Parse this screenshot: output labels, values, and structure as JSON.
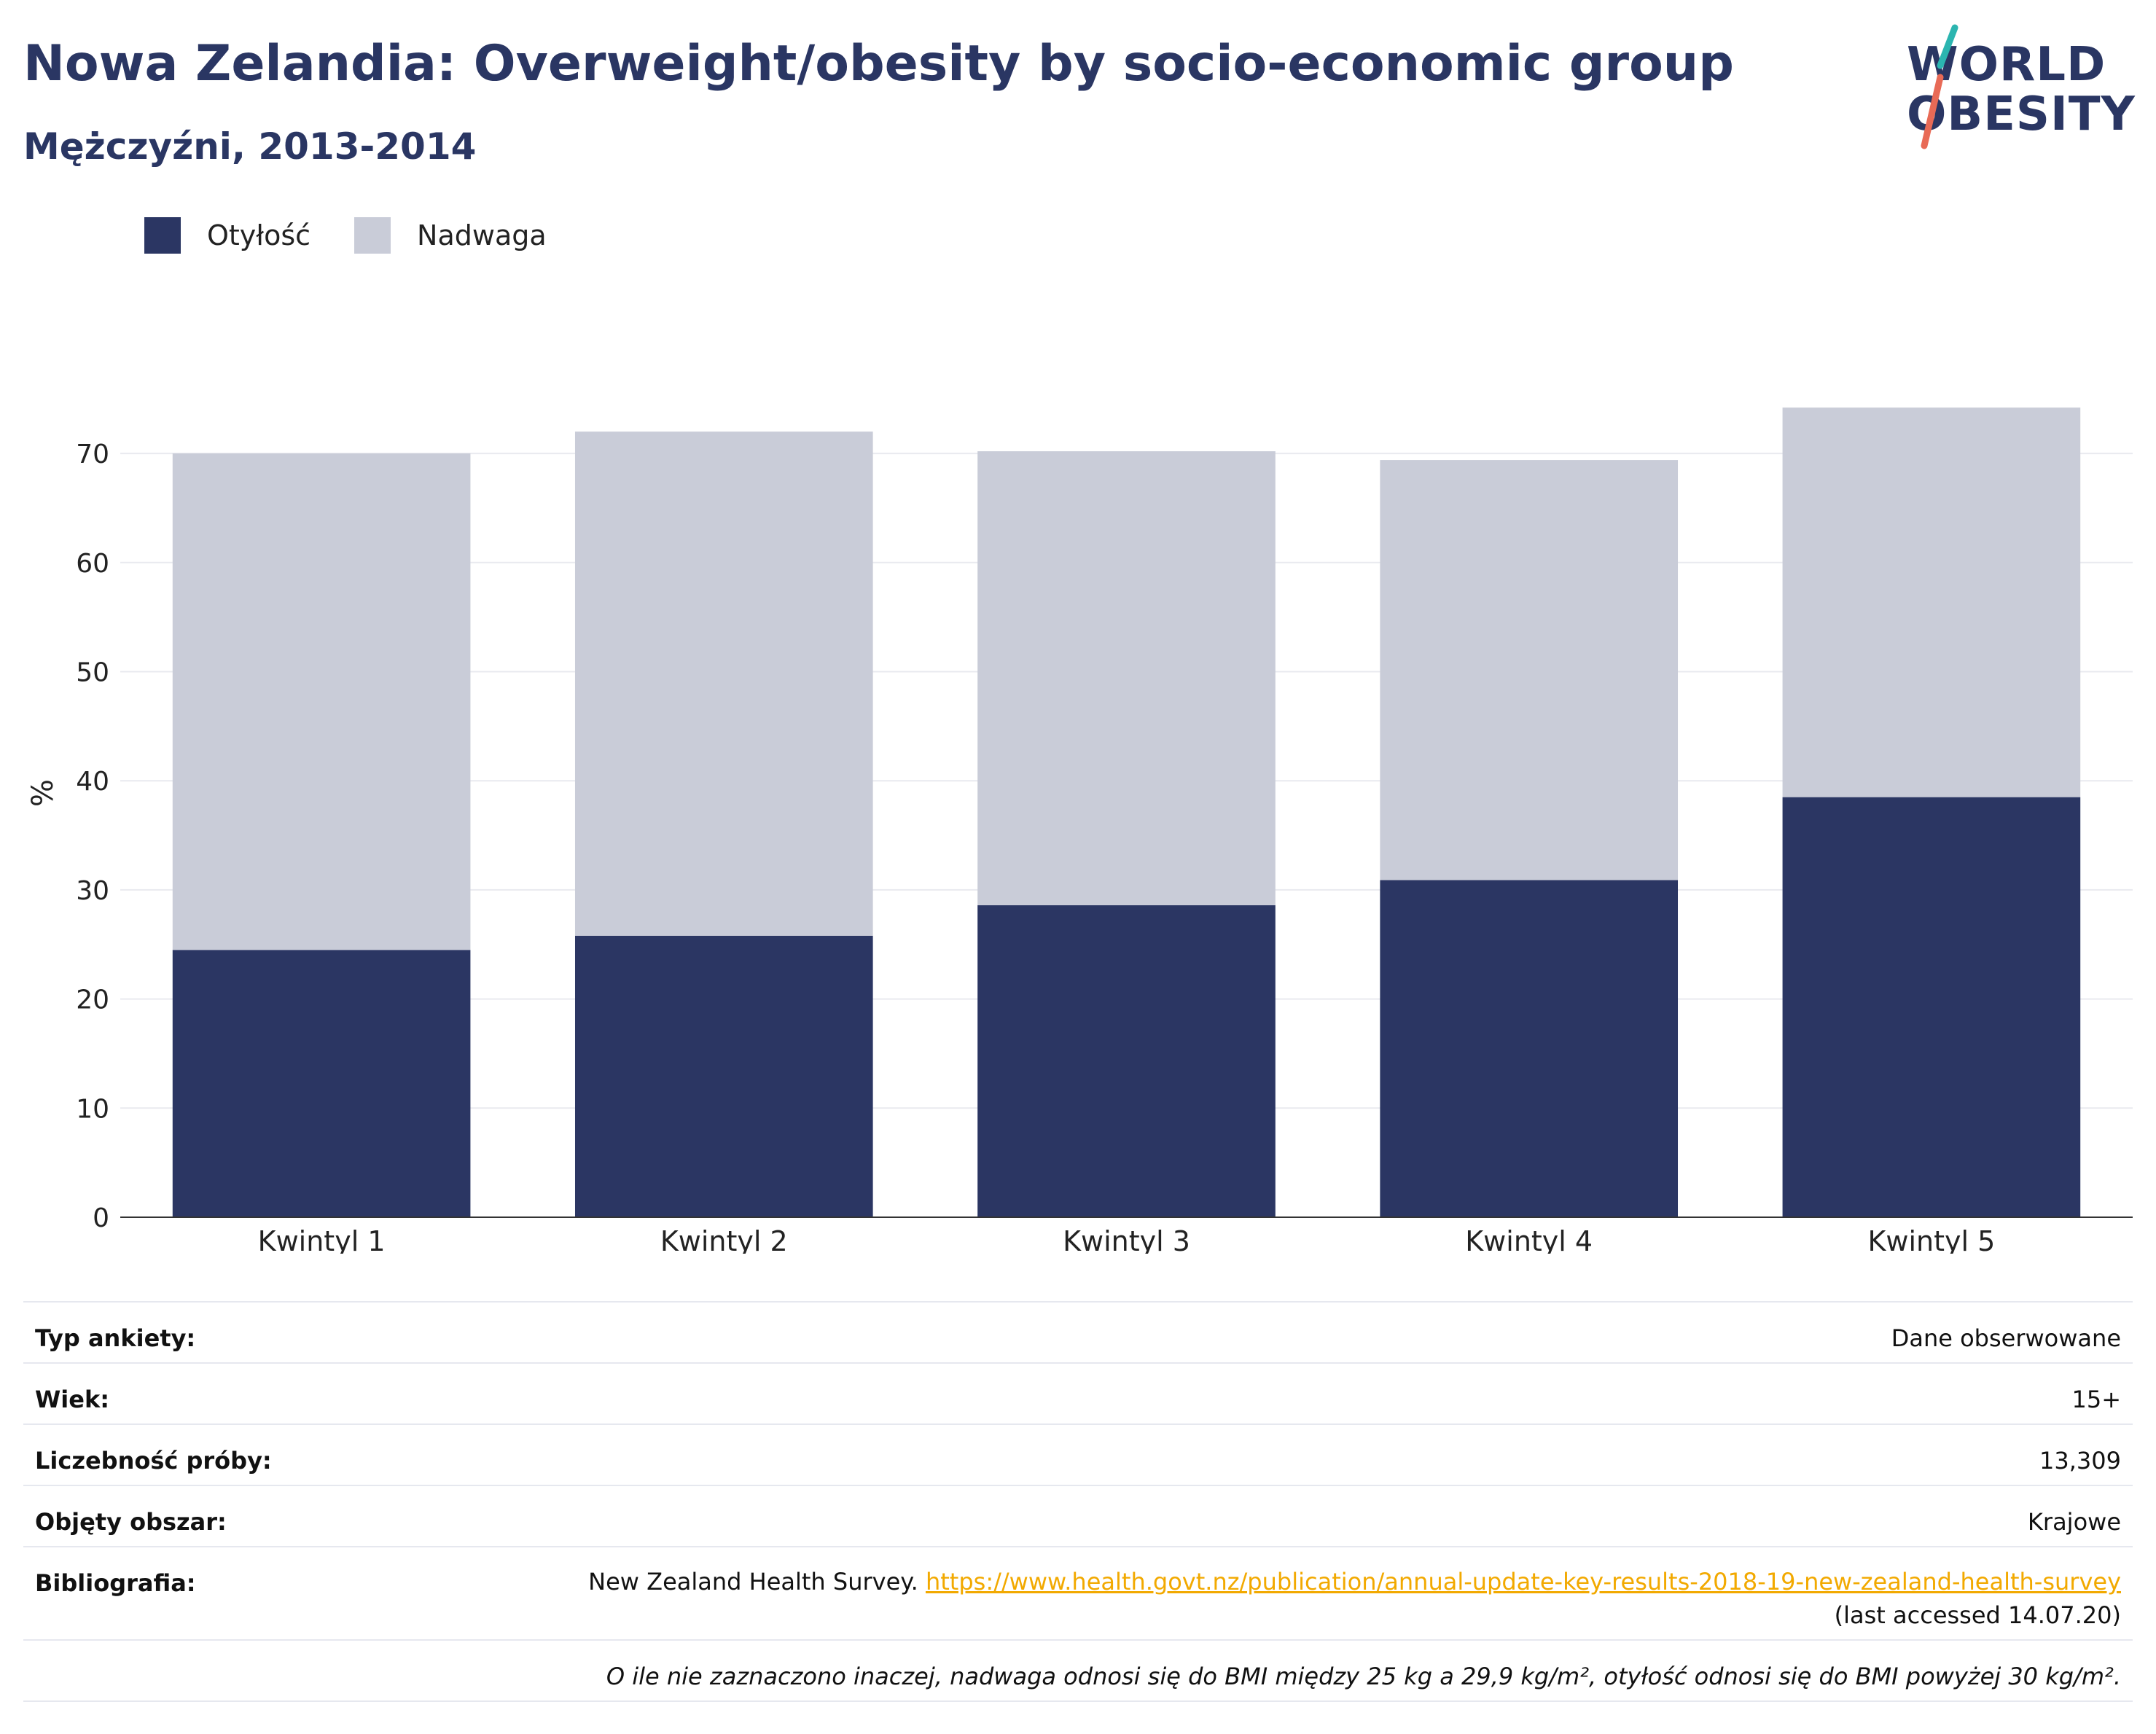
{
  "header": {
    "title": "Nowa Zelandia: Overweight/obesity by socio-economic group",
    "subtitle": "Mężczyźni, 2013-2014"
  },
  "logo": {
    "line1": "WORLD",
    "line2": "OBESITY"
  },
  "colors": {
    "obesity": "#2b3663",
    "overweight": "#c9ccd8",
    "text": "#2a3663",
    "link": "#f2a900",
    "logo_teal": "#2bb5b0",
    "logo_red": "#e86a56"
  },
  "chart_data": {
    "type": "bar",
    "stacked": true,
    "categories": [
      "Kwintyl 1",
      "Kwintyl 2",
      "Kwintyl 3",
      "Kwintyl 4",
      "Kwintyl 5"
    ],
    "series": [
      {
        "name": "Otyłość",
        "values": [
          24.5,
          25.8,
          28.6,
          30.9,
          38.5
        ]
      },
      {
        "name": "Nadwaga",
        "values": [
          45.5,
          46.2,
          41.6,
          38.5,
          35.7
        ]
      }
    ],
    "ylabel": "%",
    "xlabel": "",
    "ylim": [
      0,
      78
    ],
    "yticks": [
      0,
      10,
      20,
      30,
      40,
      50,
      60,
      70
    ],
    "grid": true,
    "legend_position": "top-left"
  },
  "meta": {
    "rows": [
      {
        "label": "Typ ankiety:",
        "value": "Dane obserwowane"
      },
      {
        "label": "Wiek:",
        "value": "15+"
      },
      {
        "label": "Liczebność próby:",
        "value": "13,309"
      },
      {
        "label": "Objęty obszar:",
        "value": "Krajowe"
      }
    ],
    "bib_label": "Bibliografia:",
    "bib_text": "New Zealand Health Survey.",
    "bib_link": "https://www.health.govt.nz/publication/annual-update-key-results-2018-19-new-zealand-health-survey",
    "bib_accessed": "(last accessed 14.07.20)",
    "note": "O ile nie zaznaczono inaczej, nadwaga odnosi się do BMI między 25 kg a 29,9 kg/m², otyłość odnosi się do BMI powyżej 30 kg/m²."
  }
}
